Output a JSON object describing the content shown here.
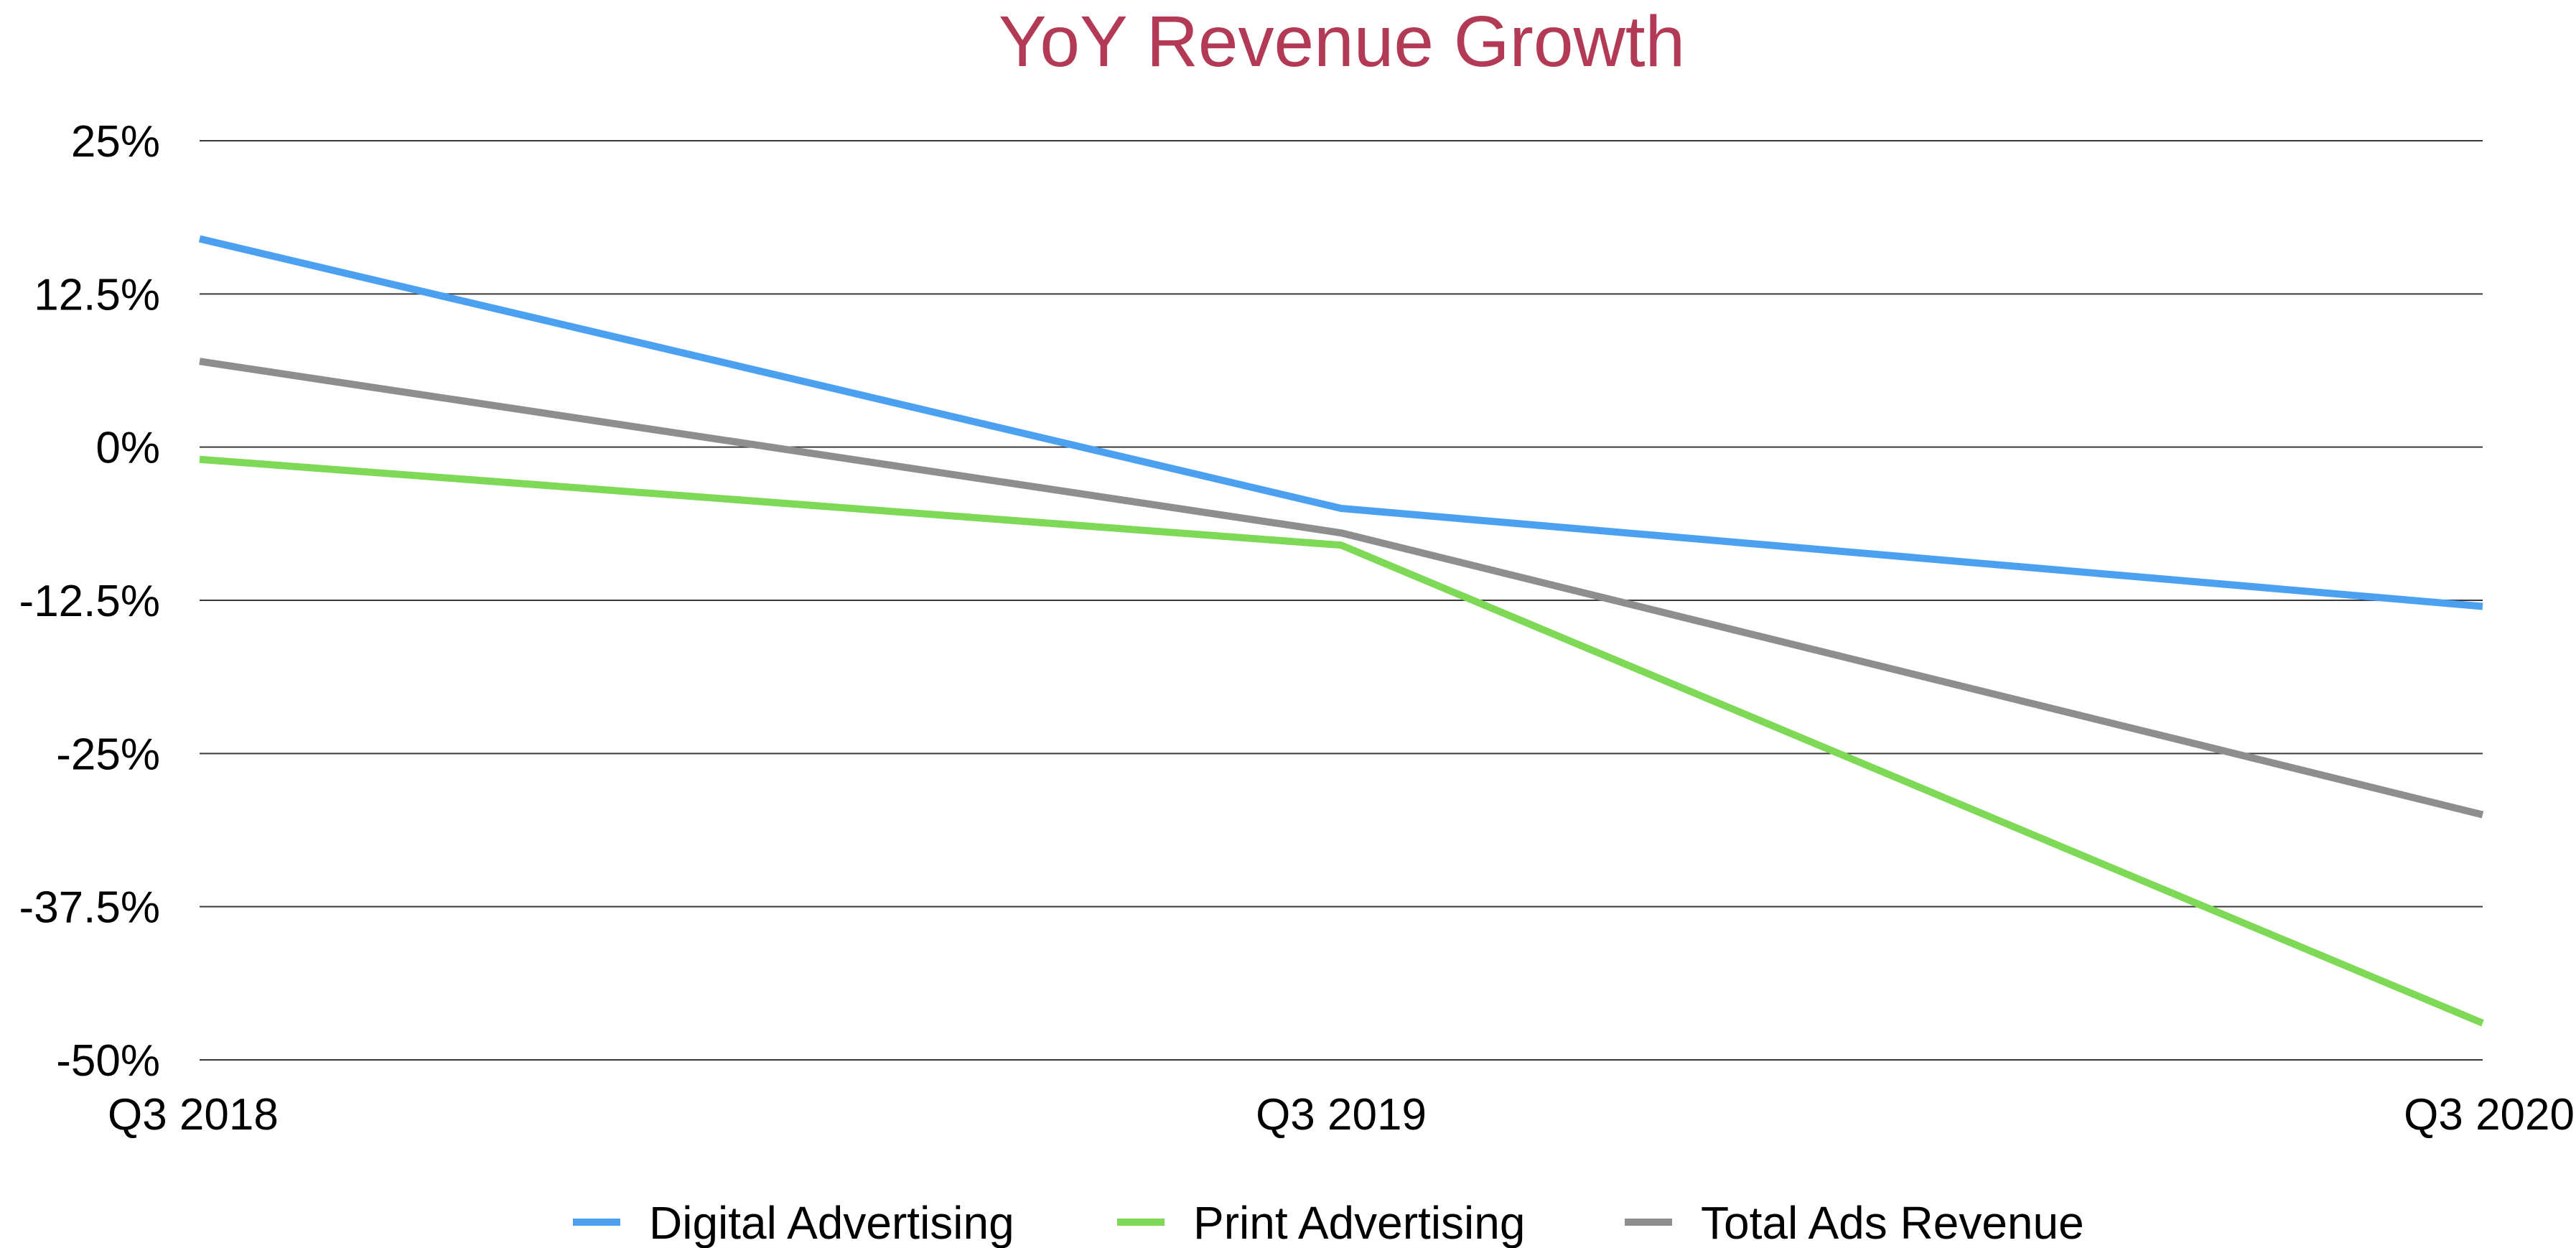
{
  "chart_data": {
    "type": "line",
    "title": "YoY Revenue Growth",
    "xlabel": "",
    "ylabel": "",
    "categories": [
      "Q3 2018",
      "Q3 2019",
      "Q3 2020"
    ],
    "y_ticks": [
      "25%",
      "12.5%",
      "0%",
      "-12.5%",
      "-25%",
      "-37.5%",
      "-50%"
    ],
    "y_tick_values": [
      25,
      12.5,
      0,
      -12.5,
      -25,
      -37.5,
      -50
    ],
    "ylim": [
      -50,
      25
    ],
    "grid": true,
    "legend_position": "bottom",
    "series": [
      {
        "name": "Digital Advertising",
        "values": [
          17,
          -5,
          -13
        ],
        "color": "#4ba0f0"
      },
      {
        "name": "Print Advertising",
        "values": [
          -1,
          -8,
          -47
        ],
        "color": "#7ed957"
      },
      {
        "name": "Total Ads Revenue",
        "values": [
          7,
          -7,
          -30
        ],
        "color": "#8e8e8e"
      }
    ],
    "title_color": "#b23a54"
  }
}
